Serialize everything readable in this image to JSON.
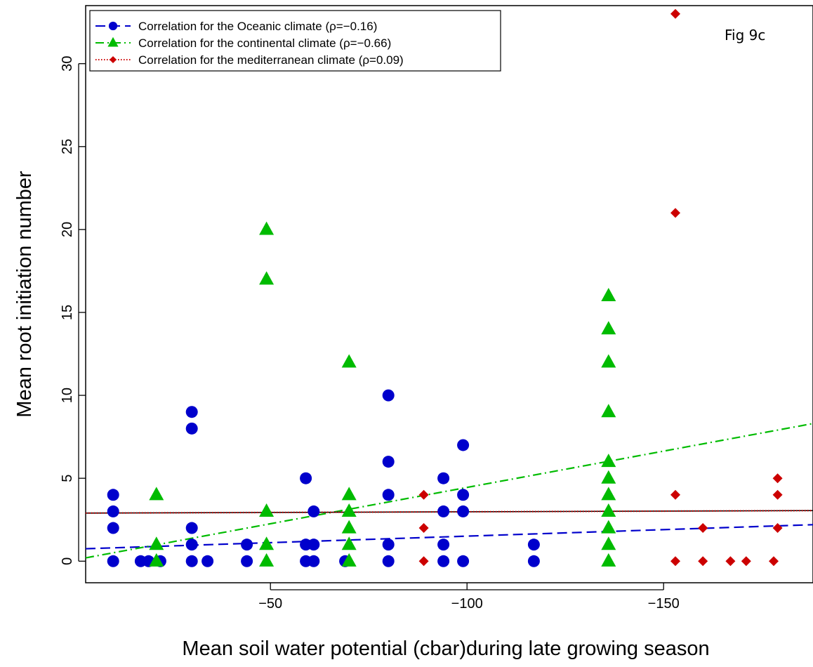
{
  "chart_data": {
    "type": "scatter",
    "title": "",
    "figure_label": "Fig 9c",
    "xlabel": "Mean soil water potential (cbar)during late growing season",
    "ylabel": "Mean root initiation number",
    "xlim": [
      -3,
      -188
    ],
    "ylim": [
      -1.3,
      33.5
    ],
    "x_axis_reversed": true,
    "xticks": [
      -50,
      -100,
      -150
    ],
    "xtick_labels": [
      "−50",
      "−100",
      "−150"
    ],
    "yticks": [
      0,
      5,
      10,
      15,
      20,
      25,
      30
    ],
    "ytick_labels": [
      "0",
      "5",
      "10",
      "15",
      "20",
      "25",
      "30"
    ],
    "grid": false,
    "legend_position": "top-left",
    "series": [
      {
        "name": "Correlation for the Oceanic climate (ρ=−0.16)",
        "marker": "circle",
        "color": "#0000cc",
        "line_style": "dashed",
        "fit_line": {
          "x": [
            -3,
            -188
          ],
          "y": [
            0.75,
            2.2
          ]
        },
        "points": [
          [
            -10,
            0
          ],
          [
            -10,
            2
          ],
          [
            -10,
            3
          ],
          [
            -10,
            4
          ],
          [
            -17,
            0
          ],
          [
            -19,
            0
          ],
          [
            -22,
            0
          ],
          [
            -30,
            0
          ],
          [
            -30,
            1
          ],
          [
            -30,
            2
          ],
          [
            -30,
            8
          ],
          [
            -30,
            9
          ],
          [
            -34,
            0
          ],
          [
            -44,
            0
          ],
          [
            -44,
            1
          ],
          [
            -59,
            0
          ],
          [
            -59,
            1
          ],
          [
            -59,
            5
          ],
          [
            -61,
            0
          ],
          [
            -61,
            1
          ],
          [
            -61,
            3
          ],
          [
            -69,
            0
          ],
          [
            -80,
            0
          ],
          [
            -80,
            1
          ],
          [
            -80,
            4
          ],
          [
            -80,
            6
          ],
          [
            -80,
            10
          ],
          [
            -94,
            0
          ],
          [
            -94,
            1
          ],
          [
            -94,
            3
          ],
          [
            -94,
            5
          ],
          [
            -99,
            0
          ],
          [
            -99,
            3
          ],
          [
            -99,
            4
          ],
          [
            -99,
            7
          ],
          [
            -117,
            0
          ],
          [
            -117,
            1
          ]
        ]
      },
      {
        "name": "Correlation for the continental climate (ρ=−0.66)",
        "marker": "triangle",
        "color": "#00bb00",
        "line_style": "dotdash",
        "fit_line": {
          "x": [
            -3,
            -188
          ],
          "y": [
            0.2,
            8.3
          ]
        },
        "points": [
          [
            -21,
            0
          ],
          [
            -21,
            1
          ],
          [
            -21,
            4
          ],
          [
            -49,
            0
          ],
          [
            -49,
            1
          ],
          [
            -49,
            3
          ],
          [
            -49,
            17
          ],
          [
            -49,
            20
          ],
          [
            -70,
            0
          ],
          [
            -70,
            1
          ],
          [
            -70,
            2
          ],
          [
            -70,
            3
          ],
          [
            -70,
            4
          ],
          [
            -70,
            12
          ],
          [
            -136,
            0
          ],
          [
            -136,
            1
          ],
          [
            -136,
            2
          ],
          [
            -136,
            3
          ],
          [
            -136,
            4
          ],
          [
            -136,
            5
          ],
          [
            -136,
            6
          ],
          [
            -136,
            9
          ],
          [
            -136,
            12
          ],
          [
            -136,
            14
          ],
          [
            -136,
            16
          ]
        ]
      },
      {
        "name": "Correlation for the mediterranean climate (ρ=0.09)",
        "marker": "diamond",
        "color": "#cc0000",
        "line_style": "dotted",
        "fit_line": {
          "x": [
            -3,
            -188
          ],
          "y": [
            2.9,
            3.05
          ]
        },
        "points": [
          [
            -89,
            0
          ],
          [
            -89,
            2
          ],
          [
            -89,
            4
          ],
          [
            -153,
            0
          ],
          [
            -153,
            4
          ],
          [
            -153,
            21
          ],
          [
            -153,
            33
          ],
          [
            -160,
            0
          ],
          [
            -160,
            2
          ],
          [
            -167,
            0
          ],
          [
            -171,
            0
          ],
          [
            -178,
            0
          ],
          [
            -179,
            2
          ],
          [
            -179,
            4
          ],
          [
            -179,
            5
          ]
        ]
      }
    ]
  }
}
